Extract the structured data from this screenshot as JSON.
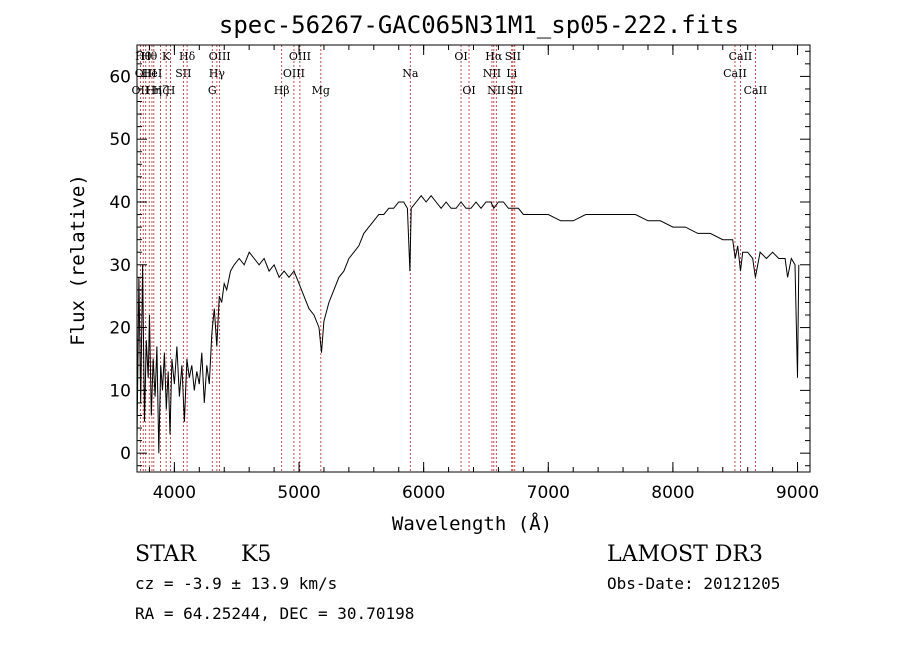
{
  "chart_data": {
    "type": "line",
    "title": "spec-56267-GAC065N31M1_sp05-222.fits",
    "xlabel": "Wavelength (Å)",
    "ylabel": "Flux (relative)",
    "xlim": [
      3700,
      9100
    ],
    "ylim": [
      -3,
      65
    ],
    "x_ticks": [
      4000,
      5000,
      6000,
      7000,
      8000,
      9000
    ],
    "y_ticks": [
      0,
      10,
      20,
      30,
      40,
      50,
      60
    ],
    "grid": false,
    "series": [
      {
        "points": [
          [
            3700,
            2
          ],
          [
            3715,
            28
          ],
          [
            3730,
            8
          ],
          [
            3745,
            30
          ],
          [
            3760,
            5
          ],
          [
            3775,
            18
          ],
          [
            3790,
            12
          ],
          [
            3800,
            22
          ],
          [
            3815,
            6
          ],
          [
            3830,
            15
          ],
          [
            3845,
            9
          ],
          [
            3860,
            17
          ],
          [
            3875,
            0
          ],
          [
            3890,
            14
          ],
          [
            3905,
            10
          ],
          [
            3920,
            16
          ],
          [
            3935,
            7
          ],
          [
            3950,
            13
          ],
          [
            3965,
            3
          ],
          [
            3980,
            15
          ],
          [
            4000,
            11
          ],
          [
            4020,
            17
          ],
          [
            4040,
            9
          ],
          [
            4060,
            14
          ],
          [
            4080,
            5
          ],
          [
            4100,
            15
          ],
          [
            4120,
            12
          ],
          [
            4140,
            14
          ],
          [
            4160,
            10
          ],
          [
            4180,
            13
          ],
          [
            4200,
            11
          ],
          [
            4220,
            16
          ],
          [
            4240,
            8
          ],
          [
            4260,
            14
          ],
          [
            4280,
            11
          ],
          [
            4300,
            19
          ],
          [
            4320,
            23
          ],
          [
            4340,
            17
          ],
          [
            4360,
            25
          ],
          [
            4380,
            24
          ],
          [
            4400,
            27
          ],
          [
            4420,
            26
          ],
          [
            4450,
            29
          ],
          [
            4480,
            30
          ],
          [
            4520,
            31
          ],
          [
            4560,
            30
          ],
          [
            4600,
            32
          ],
          [
            4640,
            31
          ],
          [
            4680,
            30
          ],
          [
            4720,
            31
          ],
          [
            4760,
            29
          ],
          [
            4800,
            30
          ],
          [
            4840,
            28
          ],
          [
            4880,
            29
          ],
          [
            4920,
            28
          ],
          [
            4960,
            29
          ],
          [
            5000,
            27
          ],
          [
            5040,
            25
          ],
          [
            5080,
            23
          ],
          [
            5120,
            22
          ],
          [
            5160,
            20
          ],
          [
            5180,
            16
          ],
          [
            5200,
            21
          ],
          [
            5240,
            24
          ],
          [
            5280,
            26
          ],
          [
            5320,
            28
          ],
          [
            5360,
            29
          ],
          [
            5400,
            31
          ],
          [
            5440,
            32
          ],
          [
            5480,
            33
          ],
          [
            5520,
            35
          ],
          [
            5560,
            36
          ],
          [
            5600,
            37
          ],
          [
            5640,
            38
          ],
          [
            5680,
            38
          ],
          [
            5720,
            39
          ],
          [
            5760,
            39
          ],
          [
            5800,
            40
          ],
          [
            5840,
            40
          ],
          [
            5870,
            39
          ],
          [
            5890,
            29
          ],
          [
            5900,
            39
          ],
          [
            5940,
            40
          ],
          [
            5980,
            41
          ],
          [
            6020,
            40
          ],
          [
            6060,
            41
          ],
          [
            6100,
            40
          ],
          [
            6140,
            39
          ],
          [
            6180,
            40
          ],
          [
            6220,
            39
          ],
          [
            6260,
            39
          ],
          [
            6300,
            40
          ],
          [
            6340,
            39
          ],
          [
            6380,
            39
          ],
          [
            6420,
            40
          ],
          [
            6460,
            39
          ],
          [
            6500,
            40
          ],
          [
            6540,
            40
          ],
          [
            6563,
            39
          ],
          [
            6600,
            40
          ],
          [
            6640,
            40
          ],
          [
            6680,
            39
          ],
          [
            6720,
            39
          ],
          [
            6760,
            39
          ],
          [
            6800,
            38
          ],
          [
            6900,
            38
          ],
          [
            7000,
            38
          ],
          [
            7100,
            37
          ],
          [
            7200,
            37
          ],
          [
            7300,
            38
          ],
          [
            7400,
            38
          ],
          [
            7500,
            38
          ],
          [
            7600,
            38
          ],
          [
            7700,
            38
          ],
          [
            7800,
            37
          ],
          [
            7900,
            37
          ],
          [
            8000,
            36
          ],
          [
            8100,
            36
          ],
          [
            8200,
            35
          ],
          [
            8300,
            35
          ],
          [
            8400,
            34
          ],
          [
            8480,
            34
          ],
          [
            8500,
            31
          ],
          [
            8520,
            33
          ],
          [
            8542,
            29
          ],
          [
            8560,
            32
          ],
          [
            8600,
            32
          ],
          [
            8640,
            31
          ],
          [
            8662,
            28
          ],
          [
            8700,
            32
          ],
          [
            8750,
            31
          ],
          [
            8800,
            32
          ],
          [
            8850,
            31
          ],
          [
            8900,
            31
          ],
          [
            8920,
            28
          ],
          [
            8950,
            31
          ],
          [
            8980,
            30
          ],
          [
            9000,
            12
          ],
          [
            9010,
            30
          ]
        ]
      }
    ],
    "lines": [
      {
        "x": 3727,
        "label": "OII",
        "row": 2
      },
      {
        "x": 3750,
        "label": "Hθ",
        "row": 0
      },
      {
        "x": 3770,
        "label": "OIII",
        "row": 1
      },
      {
        "x": 3798,
        "label": "Hθ",
        "row": 0
      },
      {
        "x": 3820,
        "label": "HeI",
        "row": 1
      },
      {
        "x": 3835,
        "label": "Hη",
        "row": 2
      },
      {
        "x": 3889,
        "label": "Hζ",
        "row": 2
      },
      {
        "x": 3934,
        "label": "K",
        "row": 0
      },
      {
        "x": 3969,
        "label": "H",
        "row": 2
      },
      {
        "x": 4072,
        "label": "SII",
        "row": 1
      },
      {
        "x": 4102,
        "label": "Hδ",
        "row": 0
      },
      {
        "x": 4304,
        "label": "G",
        "row": 2
      },
      {
        "x": 4341,
        "label": "Hγ",
        "row": 1
      },
      {
        "x": 4363,
        "label": "OIII",
        "row": 0
      },
      {
        "x": 4861,
        "label": "Hβ",
        "row": 2
      },
      {
        "x": 4959,
        "label": "OIII",
        "row": 1
      },
      {
        "x": 5007,
        "label": "OIII",
        "row": 0
      },
      {
        "x": 5175,
        "label": "Mg",
        "row": 2
      },
      {
        "x": 5893,
        "label": "Na",
        "row": 1
      },
      {
        "x": 6300,
        "label": "OI",
        "row": 0
      },
      {
        "x": 6364,
        "label": "OI",
        "row": 2
      },
      {
        "x": 6548,
        "label": "NII",
        "row": 1
      },
      {
        "x": 6563,
        "label": "Hα",
        "row": 0
      },
      {
        "x": 6583,
        "label": "NII",
        "row": 2
      },
      {
        "x": 6707,
        "label": "Li",
        "row": 1
      },
      {
        "x": 6716,
        "label": "SII",
        "row": 0
      },
      {
        "x": 6731,
        "label": "SII",
        "row": 2
      },
      {
        "x": 8498,
        "label": "CaII",
        "row": 1
      },
      {
        "x": 8542,
        "label": "CaII",
        "row": 0
      },
      {
        "x": 8662,
        "label": "CaII",
        "row": 2
      }
    ]
  },
  "info": {
    "class": "STAR",
    "subclass": "K5",
    "survey": "LAMOST DR3",
    "cz": "cz = -3.9 ± 13.9 km/s",
    "obs_date": "Obs-Date: 20121205",
    "radec": "RA =  64.25244, DEC =  30.70198"
  }
}
